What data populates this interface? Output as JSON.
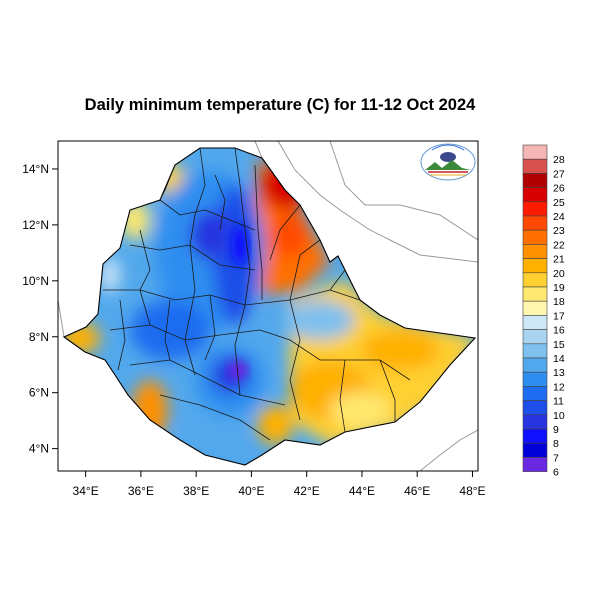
{
  "title": "Daily minimum temperature (C) for 11-12 Oct 2024",
  "map": {
    "lon_range": [
      33,
      48.2
    ],
    "lat_range": [
      3.2,
      15
    ],
    "x_ticks": [
      "34°E",
      "36°E",
      "38°E",
      "40°E",
      "42°E",
      "44°E",
      "46°E",
      "48°E"
    ],
    "y_ticks": [
      "4°N",
      "6°N",
      "8°N",
      "10°N",
      "12°N",
      "14°N"
    ],
    "logo": "ethiopian-meteorology-institute-logo"
  },
  "colorbar": {
    "labels": [
      "28",
      "27",
      "26",
      "25",
      "24",
      "23",
      "22",
      "21",
      "20",
      "19",
      "18",
      "17",
      "16",
      "15",
      "14",
      "13",
      "12",
      "11",
      "10",
      "9",
      "8",
      "7",
      "6"
    ],
    "colors": [
      "#f7b6b6",
      "#d85050",
      "#b00000",
      "#d80000",
      "#ff1a00",
      "#ff4800",
      "#ff7000",
      "#ff9000",
      "#ffb000",
      "#ffd030",
      "#ffe870",
      "#fff6b0",
      "#cfe6f6",
      "#a8d4f2",
      "#7ec0ee",
      "#52a8ec",
      "#2e8ef0",
      "#1e6cf0",
      "#1e4ee8",
      "#2834e0",
      "#1010ff",
      "#0000d8",
      "#6a28e0"
    ]
  }
}
